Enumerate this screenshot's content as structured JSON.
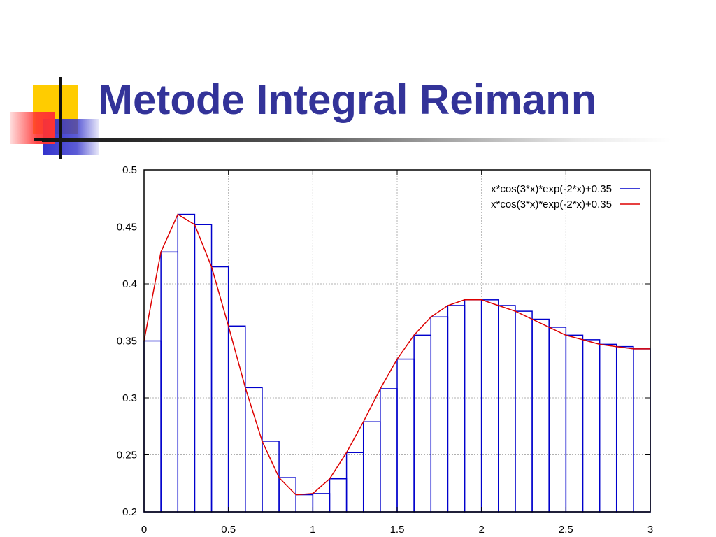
{
  "slide": {
    "title": "Metode Integral Reimann"
  },
  "colors": {
    "title": "#333399",
    "bars": "#0000cc",
    "curve": "#dd0000",
    "logo_yellow": "#ffcc00",
    "logo_red": "#ff3333",
    "logo_blue": "#3333cc"
  },
  "icons": [
    "presentation-logo-squares"
  ],
  "chart_data": {
    "type": "bar",
    "title": "",
    "xlabel": "",
    "ylabel": "",
    "xlim": [
      0,
      3
    ],
    "ylim": [
      0.2,
      0.5
    ],
    "grid": true,
    "legend_position": "top-right",
    "xticks": [
      "0",
      "0.5",
      "1",
      "1.5",
      "2",
      "2.5",
      "3"
    ],
    "yticks": [
      "0.2",
      "0.25",
      "0.3",
      "0.35",
      "0.4",
      "0.45",
      "0.5"
    ],
    "series": [
      {
        "name": "x*cos(3*x)*exp(-2*x)+0.35",
        "type": "bar",
        "bin_width": 0.1,
        "x": [
          0,
          0.1,
          0.2,
          0.3,
          0.4,
          0.5,
          0.6,
          0.7,
          0.8,
          0.9,
          1.0,
          1.1,
          1.2,
          1.3,
          1.4,
          1.5,
          1.6,
          1.7,
          1.8,
          1.9,
          2.0,
          2.1,
          2.2,
          2.3,
          2.4,
          2.5,
          2.6,
          2.7,
          2.8,
          2.9
        ],
        "values": [
          0.35,
          0.428,
          0.461,
          0.452,
          0.415,
          0.363,
          0.309,
          0.262,
          0.23,
          0.215,
          0.216,
          0.229,
          0.252,
          0.279,
          0.308,
          0.334,
          0.355,
          0.371,
          0.381,
          0.386,
          0.386,
          0.381,
          0.376,
          0.369,
          0.362,
          0.355,
          0.351,
          0.347,
          0.345,
          0.343
        ]
      },
      {
        "name": "x*cos(3*x)*exp(-2*x)+0.35",
        "type": "line",
        "x": [
          0,
          0.1,
          0.2,
          0.3,
          0.4,
          0.5,
          0.6,
          0.7,
          0.8,
          0.9,
          1.0,
          1.1,
          1.2,
          1.3,
          1.4,
          1.5,
          1.6,
          1.7,
          1.8,
          1.9,
          2.0,
          2.1,
          2.2,
          2.3,
          2.4,
          2.5,
          2.6,
          2.7,
          2.8,
          2.9,
          3.0
        ],
        "values": [
          0.35,
          0.428,
          0.461,
          0.452,
          0.415,
          0.363,
          0.309,
          0.262,
          0.23,
          0.215,
          0.216,
          0.229,
          0.252,
          0.279,
          0.308,
          0.334,
          0.355,
          0.371,
          0.381,
          0.386,
          0.386,
          0.381,
          0.376,
          0.369,
          0.362,
          0.355,
          0.351,
          0.347,
          0.345,
          0.343,
          0.343
        ]
      }
    ]
  }
}
